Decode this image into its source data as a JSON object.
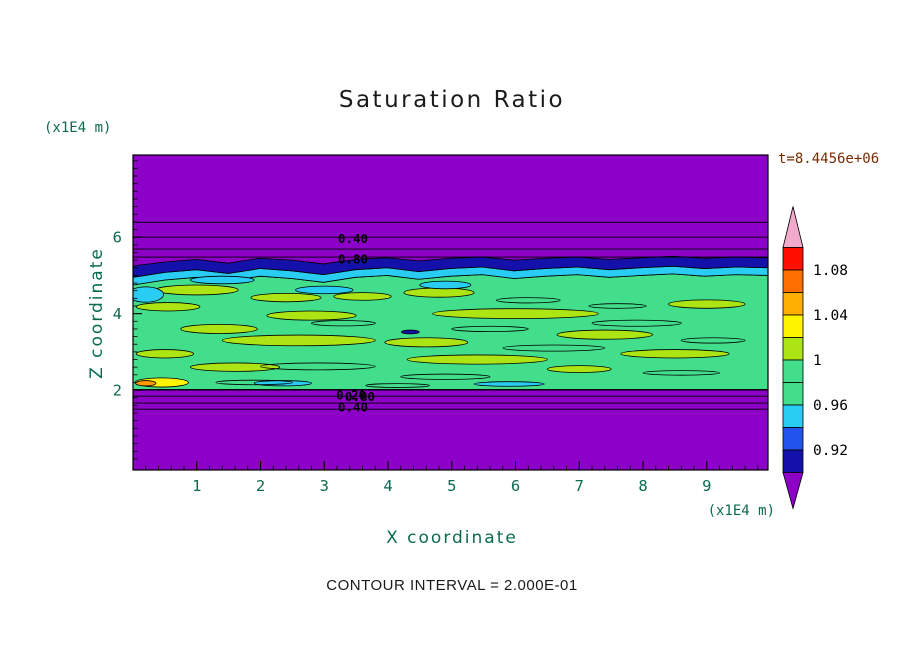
{
  "title": "Saturation Ratio",
  "time_label": "t=8.4456e+06",
  "xlabel": "X coordinate",
  "ylabel": "Z coordinate",
  "x_unit": "(x1E4 m)",
  "y_unit": "(x1E4 m)",
  "contour_note": "CONTOUR INTERVAL = 2.000E-01",
  "chart_data": {
    "type": "contour",
    "title": "Saturation Ratio",
    "xlabel": "X coordinate",
    "ylabel": "Z coordinate",
    "x_unit": "(x1E4 m)",
    "y_unit": "(x1E4 m)",
    "time": "t=8.4456e+06",
    "contour_interval": "2.000E-01",
    "x_range": [
      0,
      9.96
    ],
    "z_range": [
      -0.09,
      8.15
    ],
    "x_ticks": [
      1,
      2,
      3,
      4,
      5,
      6,
      7,
      8,
      9
    ],
    "z_ticks": [
      2,
      4,
      6
    ],
    "minor_tick_step": 0.2,
    "colors": {
      "background": "#8C00C8",
      "green": "#42DE8C",
      "yellow_green": "#ACE414",
      "cyan": "#29CCF2",
      "navy": "#1410AA",
      "blue": "#2253EE",
      "yellow": "#FFF500",
      "orange": "#FF9A00",
      "red": "#FF0F00",
      "pink": "#F2AACC",
      "axis_text": "#0B6B4F",
      "time_text": "#7A2A00",
      "line": "#000000"
    },
    "colorbar": {
      "labels": [
        "1.08",
        "1.04",
        "1",
        "0.96",
        "0.92"
      ],
      "segment_colors": [
        "#FF0F00",
        "#FF6E00",
        "#FFAF00",
        "#FFF500",
        "#ACE414",
        "#42DE8C",
        "#42DE8C",
        "#29CCF2",
        "#2253EE",
        "#1410AA"
      ],
      "arrow_top_color": "#F2AACC",
      "arrow_bottom_color": "#8C00C8",
      "value_min": 0.9,
      "value_max": 1.1,
      "step": 0.02
    },
    "layers": {
      "band_bottom_z": 2.02,
      "green_top_profile": [
        4.75,
        4.88,
        4.95,
        4.85,
        4.98,
        4.92,
        4.82,
        4.95,
        5.0,
        4.9,
        4.98,
        5.02,
        4.92,
        4.98,
        5.02,
        4.95,
        5.0,
        5.04,
        4.98,
        5.02,
        5.0
      ],
      "navy_bottom_profile": [
        4.95,
        5.08,
        5.15,
        5.05,
        5.18,
        5.12,
        5.02,
        5.15,
        5.2,
        5.1,
        5.18,
        5.22,
        5.12,
        5.18,
        5.22,
        5.15,
        5.2,
        5.24,
        5.18,
        5.22,
        5.2
      ],
      "navy_top_profile": [
        5.25,
        5.35,
        5.42,
        5.32,
        5.45,
        5.4,
        5.3,
        5.42,
        5.46,
        5.38,
        5.45,
        5.48,
        5.4,
        5.45,
        5.48,
        5.42,
        5.46,
        5.5,
        5.45,
        5.48,
        5.46
      ],
      "top_lines_z": [
        6.39,
        6.0,
        5.69,
        5.48
      ],
      "bottom_lines_z": [
        2.0,
        1.84,
        1.66,
        1.5
      ],
      "contour_labels": [
        {
          "text": "0.40",
          "x": 3.45,
          "z": 5.95
        },
        {
          "text": "0.80",
          "x": 3.45,
          "z": 5.42
        },
        {
          "text": "0.20",
          "x": 3.42,
          "z": 1.86
        },
        {
          "text": "0.80",
          "x": 3.56,
          "z": 1.82
        },
        {
          "text": "0.40",
          "x": 3.45,
          "z": 1.55
        }
      ],
      "blobs": [
        {
          "x": 1.0,
          "z": 4.62,
          "rx": 0.65,
          "rz": 0.13,
          "color": "yellow_green"
        },
        {
          "x": 2.4,
          "z": 4.42,
          "rx": 0.55,
          "rz": 0.11,
          "color": "yellow_green"
        },
        {
          "x": 0.55,
          "z": 4.18,
          "rx": 0.5,
          "rz": 0.11,
          "color": "yellow_green"
        },
        {
          "x": 2.8,
          "z": 3.95,
          "rx": 0.7,
          "rz": 0.12,
          "color": "yellow_green"
        },
        {
          "x": 1.35,
          "z": 3.6,
          "rx": 0.6,
          "rz": 0.12,
          "color": "yellow_green"
        },
        {
          "x": 2.6,
          "z": 3.3,
          "rx": 1.2,
          "rz": 0.14,
          "color": "yellow_green"
        },
        {
          "x": 0.5,
          "z": 2.95,
          "rx": 0.45,
          "rz": 0.11,
          "color": "yellow_green"
        },
        {
          "x": 1.6,
          "z": 2.6,
          "rx": 0.7,
          "rz": 0.11,
          "color": "yellow_green"
        },
        {
          "x": 3.6,
          "z": 4.45,
          "rx": 0.45,
          "rz": 0.1,
          "color": "yellow_green"
        },
        {
          "x": 4.8,
          "z": 4.55,
          "rx": 0.55,
          "rz": 0.12,
          "color": "yellow_green"
        },
        {
          "x": 6.0,
          "z": 4.0,
          "rx": 1.3,
          "rz": 0.13,
          "color": "yellow_green"
        },
        {
          "x": 4.6,
          "z": 3.25,
          "rx": 0.65,
          "rz": 0.12,
          "color": "yellow_green"
        },
        {
          "x": 5.4,
          "z": 2.8,
          "rx": 1.1,
          "rz": 0.12,
          "color": "yellow_green"
        },
        {
          "x": 7.4,
          "z": 3.45,
          "rx": 0.75,
          "rz": 0.12,
          "color": "yellow_green"
        },
        {
          "x": 8.5,
          "z": 2.95,
          "rx": 0.85,
          "rz": 0.11,
          "color": "yellow_green"
        },
        {
          "x": 9.0,
          "z": 4.25,
          "rx": 0.6,
          "rz": 0.11,
          "color": "yellow_green"
        },
        {
          "x": 7.0,
          "z": 2.55,
          "rx": 0.5,
          "rz": 0.09,
          "color": "yellow_green"
        },
        {
          "x": 1.4,
          "z": 4.88,
          "rx": 0.5,
          "rz": 0.1,
          "color": "cyan"
        },
        {
          "x": 3.0,
          "z": 4.62,
          "rx": 0.45,
          "rz": 0.1,
          "color": "cyan"
        },
        {
          "x": 4.9,
          "z": 4.75,
          "rx": 0.4,
          "rz": 0.1,
          "color": "cyan"
        },
        {
          "x": 0.2,
          "z": 4.5,
          "rx": 0.28,
          "rz": 0.2,
          "color": "cyan"
        },
        {
          "x": 2.35,
          "z": 2.18,
          "rx": 0.45,
          "rz": 0.07,
          "color": "cyan"
        },
        {
          "x": 5.9,
          "z": 2.16,
          "rx": 0.55,
          "rz": 0.06,
          "color": "cyan"
        },
        {
          "x": 0.45,
          "z": 2.2,
          "rx": 0.42,
          "rz": 0.12,
          "color": "yellow"
        },
        {
          "x": 0.2,
          "z": 2.18,
          "rx": 0.16,
          "rz": 0.07,
          "color": "orange"
        },
        {
          "x": 4.35,
          "z": 3.52,
          "rx": 0.14,
          "rz": 0.05,
          "color": "navy"
        }
      ],
      "outlines": [
        {
          "x": 2.9,
          "z": 2.62,
          "rx": 0.9,
          "rz": 0.09
        },
        {
          "x": 4.9,
          "z": 2.35,
          "rx": 0.7,
          "rz": 0.07
        },
        {
          "x": 6.6,
          "z": 3.1,
          "rx": 0.8,
          "rz": 0.08
        },
        {
          "x": 7.9,
          "z": 3.75,
          "rx": 0.7,
          "rz": 0.08
        },
        {
          "x": 9.1,
          "z": 3.3,
          "rx": 0.5,
          "rz": 0.07
        },
        {
          "x": 5.6,
          "z": 3.6,
          "rx": 0.6,
          "rz": 0.07
        },
        {
          "x": 3.3,
          "z": 3.75,
          "rx": 0.5,
          "rz": 0.07
        },
        {
          "x": 8.6,
          "z": 2.45,
          "rx": 0.6,
          "rz": 0.06
        },
        {
          "x": 1.9,
          "z": 2.2,
          "rx": 0.6,
          "rz": 0.06
        },
        {
          "x": 4.15,
          "z": 2.12,
          "rx": 0.5,
          "rz": 0.05
        },
        {
          "x": 6.2,
          "z": 4.35,
          "rx": 0.5,
          "rz": 0.07
        },
        {
          "x": 7.6,
          "z": 4.2,
          "rx": 0.45,
          "rz": 0.06
        }
      ]
    }
  }
}
